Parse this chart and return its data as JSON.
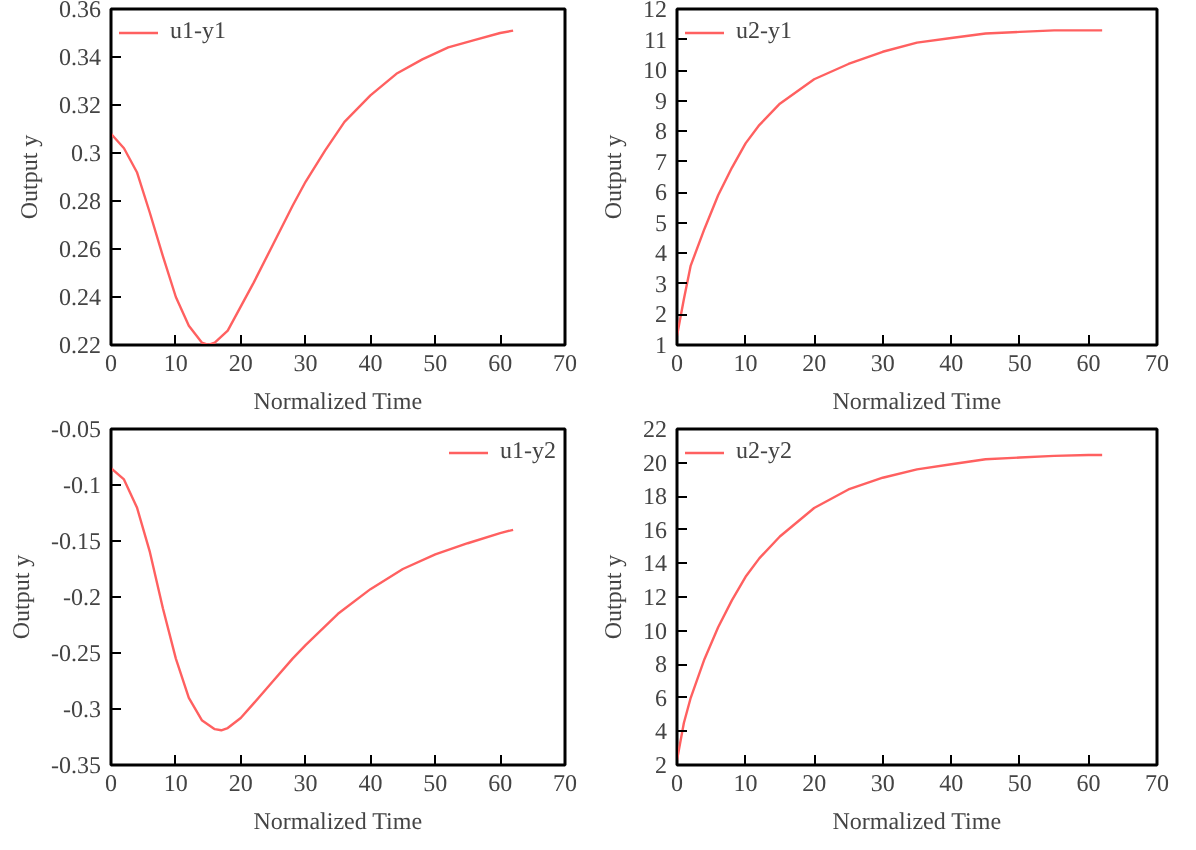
{
  "chart_data": [
    {
      "type": "line",
      "xlabel": "Normalized Time",
      "ylabel": "Output y",
      "xlim": [
        0,
        70
      ],
      "xticks": [
        0,
        10,
        20,
        30,
        40,
        50,
        60,
        70
      ],
      "ylim": [
        0.22,
        0.36
      ],
      "yticks": [
        0.22,
        0.24,
        0.26,
        0.28,
        0.3,
        0.32,
        0.34,
        0.36
      ],
      "legend": "top left",
      "grid": false,
      "series": [
        {
          "name": "u1-y1",
          "color": "#ff6060",
          "x": [
            0,
            2,
            4,
            6,
            8,
            10,
            12,
            14,
            15,
            16,
            18,
            20,
            22,
            25,
            28,
            30,
            33,
            36,
            40,
            44,
            48,
            52,
            56,
            60,
            62
          ],
          "values": [
            0.308,
            0.302,
            0.292,
            0.275,
            0.257,
            0.24,
            0.228,
            0.221,
            0.22,
            0.221,
            0.226,
            0.236,
            0.246,
            0.262,
            0.278,
            0.288,
            0.301,
            0.313,
            0.324,
            0.333,
            0.339,
            0.344,
            0.347,
            0.35,
            0.351
          ]
        }
      ]
    },
    {
      "type": "line",
      "xlabel": "Normalized Time",
      "ylabel": "Output y",
      "xlim": [
        0,
        70
      ],
      "xticks": [
        0,
        10,
        20,
        30,
        40,
        50,
        60,
        70
      ],
      "ylim": [
        1,
        12
      ],
      "yticks": [
        1,
        2,
        3,
        4,
        5,
        6,
        7,
        8,
        9,
        10,
        11,
        12
      ],
      "legend": "top left",
      "grid": false,
      "series": [
        {
          "name": "u2-y1",
          "color": "#ff6060",
          "x": [
            0,
            1,
            2,
            4,
            6,
            8,
            10,
            12,
            15,
            20,
            25,
            30,
            35,
            40,
            45,
            50,
            55,
            60,
            62
          ],
          "values": [
            1.3,
            2.5,
            3.6,
            4.8,
            5.9,
            6.8,
            7.6,
            8.2,
            8.9,
            9.7,
            10.2,
            10.6,
            10.9,
            11.05,
            11.2,
            11.25,
            11.3,
            11.3,
            11.3
          ]
        }
      ]
    },
    {
      "type": "line",
      "xlabel": "Normalized Time",
      "ylabel": "Output y",
      "xlim": [
        0,
        70
      ],
      "xticks": [
        0,
        10,
        20,
        30,
        40,
        50,
        60,
        70
      ],
      "ylim": [
        -0.35,
        -0.05
      ],
      "yticks": [
        -0.35,
        -0.3,
        -0.25,
        -0.2,
        -0.15,
        -0.1,
        -0.05
      ],
      "legend": "top right",
      "grid": false,
      "series": [
        {
          "name": "u1-y2",
          "color": "#ff6060",
          "x": [
            0,
            2,
            4,
            6,
            8,
            10,
            12,
            14,
            16,
            17,
            18,
            20,
            22,
            25,
            28,
            30,
            35,
            40,
            45,
            50,
            55,
            60,
            62
          ],
          "values": [
            -0.085,
            -0.095,
            -0.12,
            -0.16,
            -0.21,
            -0.255,
            -0.29,
            -0.31,
            -0.318,
            -0.319,
            -0.317,
            -0.308,
            -0.295,
            -0.275,
            -0.255,
            -0.243,
            -0.215,
            -0.193,
            -0.175,
            -0.162,
            -0.152,
            -0.143,
            -0.14
          ]
        }
      ]
    },
    {
      "type": "line",
      "xlabel": "Normalized Time",
      "ylabel": "Output y",
      "xlim": [
        0,
        70
      ],
      "xticks": [
        0,
        10,
        20,
        30,
        40,
        50,
        60,
        70
      ],
      "ylim": [
        2,
        22
      ],
      "yticks": [
        2,
        4,
        6,
        8,
        10,
        12,
        14,
        16,
        18,
        20,
        22
      ],
      "legend": "top left",
      "grid": false,
      "series": [
        {
          "name": "u2-y2",
          "color": "#ff6060",
          "x": [
            0,
            1,
            2,
            4,
            6,
            8,
            10,
            12,
            15,
            20,
            25,
            30,
            35,
            40,
            45,
            50,
            55,
            60,
            62
          ],
          "values": [
            2.3,
            4.5,
            6,
            8.3,
            10.2,
            11.8,
            13.2,
            14.3,
            15.6,
            17.3,
            18.4,
            19.1,
            19.6,
            19.9,
            20.2,
            20.3,
            20.4,
            20.45,
            20.45
          ]
        }
      ]
    }
  ]
}
